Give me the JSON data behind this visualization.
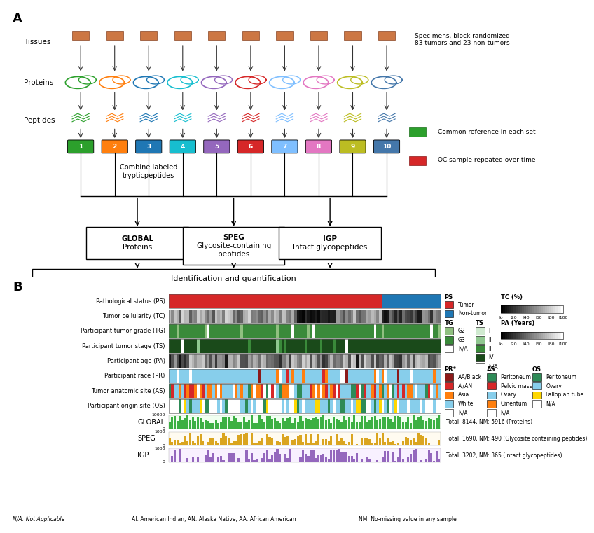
{
  "panel_a": {
    "label": "A",
    "tmtlabels": [
      "1",
      "2",
      "3",
      "4",
      "5",
      "6",
      "7",
      "8",
      "9",
      "10"
    ],
    "tmt_colors": [
      "#2ca02c",
      "#ff7f0e",
      "#1f77b4",
      "#17becf",
      "#9467bd",
      "#d62728",
      "#7fbfff",
      "#e377c2",
      "#bcbd22",
      "#4477aa"
    ],
    "note1": "Specimens, block randomized\n83 tumors and 23 non-tumors",
    "note2": "Common reference in each set",
    "note3": "QC sample repeated over time",
    "combine_text": "Combine labeled\ntrypticpeptides",
    "box_labels": [
      "GLOBAL\nProteins",
      "SPEG\nGlycosite-containing\npeptides",
      "IGP\nIntact glycopeptides"
    ],
    "box_bold": [
      "GLOBAL",
      "SPEG",
      "IGP"
    ],
    "final_box": "Identification and quantification"
  },
  "panel_b": {
    "label": "B",
    "row_labels": [
      "Pathological status (PS)",
      "Tumor cellularity (TC)",
      "Participant tumor grade (TG)",
      "Participant tumor stage (TS)",
      "Participant age (PA)",
      "Participant race (PR)",
      "Tumor anatomic site (AS)",
      "Participant origin site (OS)"
    ],
    "bar_labels": [
      "GLOBAL",
      "SPEG",
      "IGP"
    ],
    "bar_colors": [
      "#3cb043",
      "#daa520",
      "#9467bd"
    ],
    "totals": [
      "Total: 8144, NM: 5916 (Proteins)",
      "Total: 1690, NM: 490 (Glycosite containing peptides)",
      "Total: 3202, NM: 365 (Intact glycopeptides)"
    ],
    "note_na": "N/A: Not Applicable",
    "note_ai": "AI: American Indian, AN: Alaska Native, AA: African American",
    "note_nm": "NM: No-missing value in any sample"
  }
}
